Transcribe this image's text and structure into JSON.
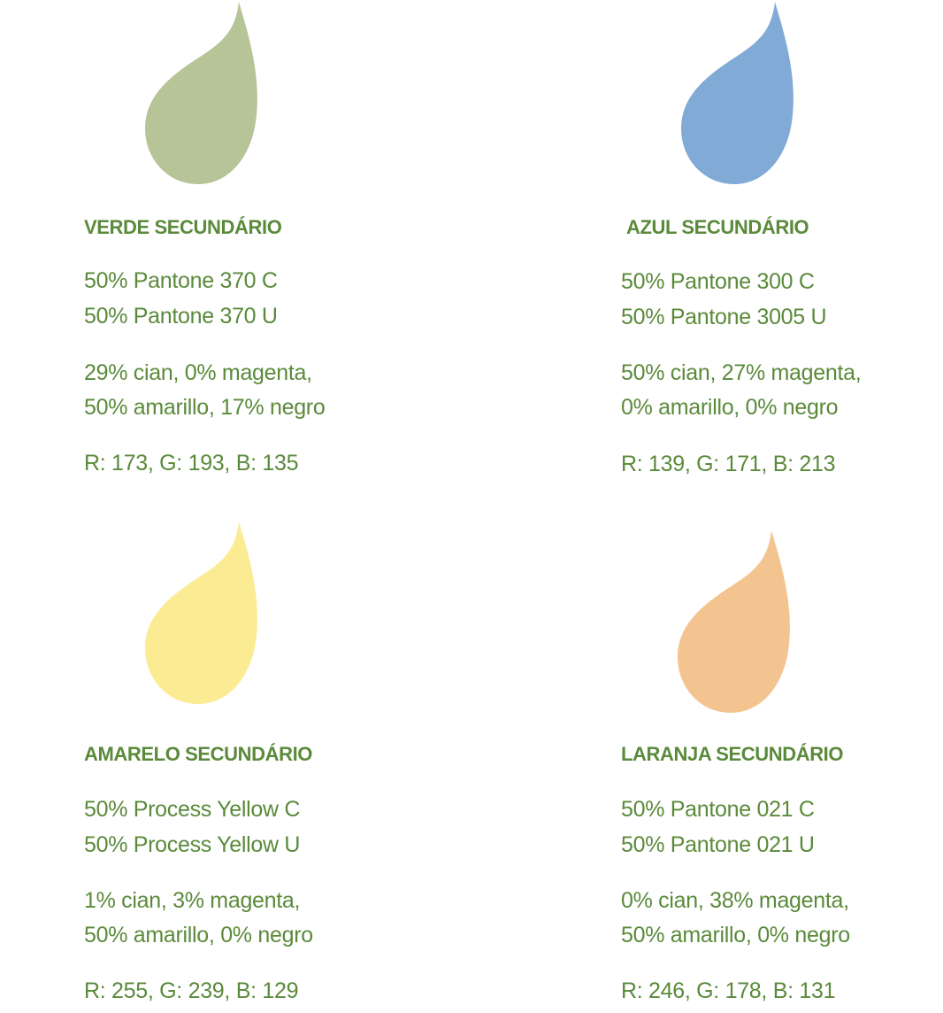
{
  "swatches": [
    {
      "title": "VERDE SECUNDÁRIO",
      "pantone_c": "50% Pantone 370 C",
      "pantone_u": "50% Pantone 370 U",
      "cmyk_1": "29% cian, 0% magenta,",
      "cmyk_2": "50% amarillo, 17% negro",
      "rgb": "R: 173, G: 193, B: 135",
      "drop_color": "#b7c497",
      "drop_icon": "drop-icon"
    },
    {
      "title": "AZUL SECUNDÁRIO",
      "pantone_c": "50% Pantone 300 C",
      "pantone_u": "50% Pantone 3005 U",
      "cmyk_1": "50% cian, 27% magenta,",
      "cmyk_2": "0% amarillo, 0% negro",
      "rgb": "R: 139, G: 171, B: 213",
      "drop_color": "#82aad6",
      "drop_icon": "drop-icon"
    },
    {
      "title": "AMARELO SECUNDÁRIO",
      "pantone_c": "50% Process Yellow C",
      "pantone_u": "50% Process Yellow U",
      "cmyk_1": "1% cian, 3% magenta,",
      "cmyk_2": "50% amarillo, 0% negro",
      "rgb": "R: 255, G: 239, B: 129",
      "drop_color": "#fbec93",
      "drop_icon": "drop-icon"
    },
    {
      "title": "LARANJA SECUNDÁRIO",
      "pantone_c": "50% Pantone 021 C",
      "pantone_u": "50% Pantone 021 U",
      "cmyk_1": "0% cian, 38% magenta,",
      "cmyk_2": "50% amarillo, 0% negro",
      "rgb": "R: 246, G: 178, B: 131",
      "drop_color": "#f4c490",
      "drop_icon": "drop-icon"
    }
  ],
  "text_color": "#5a8a3a"
}
